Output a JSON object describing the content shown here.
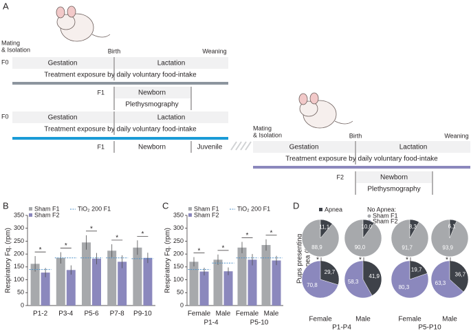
{
  "panel_a": {
    "label": "A",
    "row1": {
      "mating": [
        "Mating",
        "& Isolation"
      ],
      "birth": "Birth",
      "weaning": "Weaning",
      "generation": "F0",
      "gestation": "Gestation",
      "lactation": "Lactation",
      "treatment": "Treatment exposure by daily voluntary food-intake",
      "offspring": "F1",
      "newborn": "Newborn",
      "plethysmography": "Plethysmography"
    },
    "row2": {
      "generation": "F0",
      "gestation": "Gestation",
      "lactation": "Lactation",
      "treatment": "Treatment exposure by daily voluntary food-intake",
      "offspring": "F1",
      "newborn": "Newborn",
      "juvenile": "Juvenile"
    },
    "row3": {
      "mating": [
        "Mating",
        "& Isolation"
      ],
      "birth": "Birth",
      "weaning": "Weaning",
      "gestation": "Gestation",
      "lactation": "Lactation",
      "treatment": "Treatment exposure by daily voluntary food-intake",
      "offspring": "F2",
      "newborn": "Newborn",
      "plethysmography": "Plethysmography"
    }
  },
  "chart_data": [
    {
      "type": "bar",
      "panel_label": "B",
      "y_label": "Respiratory Fq. (rpm)",
      "categories": [
        "P1-2",
        "P3-4",
        "P5-6",
        "P7-8",
        "P9-10"
      ],
      "ylim": [
        0,
        350
      ],
      "yticks": [
        0,
        50,
        100,
        150,
        200,
        250,
        300,
        350
      ],
      "series": [
        {
          "name": "Sham F1",
          "color": "#a7a9ac",
          "values": [
            162,
            185,
            245,
            213,
            225
          ],
          "errors": [
            30,
            22,
            28,
            25,
            28
          ]
        },
        {
          "name": "Sham F2",
          "color": "#8b88bd",
          "values": [
            128,
            138,
            182,
            170,
            185
          ],
          "errors": [
            18,
            18,
            22,
            25,
            20
          ]
        }
      ],
      "reference": {
        "name": "TiO₂ 200 F1",
        "color": "#4a8fc7",
        "values": [
          140,
          185,
          185,
          185,
          182
        ]
      },
      "significance": [
        "*",
        "*",
        "*",
        "*",
        "*"
      ]
    },
    {
      "type": "bar",
      "panel_label": "C",
      "y_label": "Respiratory Fq. (rpm)",
      "categories": [
        "Female",
        "Male",
        "Female",
        "Male"
      ],
      "group_labels": [
        "P1-4",
        "P5-10"
      ],
      "ylim": [
        0,
        350
      ],
      "yticks": [
        0,
        50,
        100,
        150,
        200,
        250,
        300,
        350
      ],
      "series": [
        {
          "name": "Sham F1",
          "color": "#a7a9ac",
          "values": [
            170,
            178,
            225,
            235
          ],
          "errors": [
            18,
            20,
            22,
            22
          ]
        },
        {
          "name": "Sham F2",
          "color": "#8b88bd",
          "values": [
            132,
            133,
            178,
            175
          ],
          "errors": [
            15,
            15,
            22,
            18
          ]
        }
      ],
      "reference": {
        "name": "TiO₂ 200 F1",
        "color": "#4a8fc7",
        "values": [
          140,
          165,
          185,
          185
        ]
      },
      "significance": [
        "*",
        "*",
        "*",
        "*"
      ]
    },
    {
      "type": "pie",
      "panel_label": "D",
      "y_label": [
        "Pups presenting",
        "Apnea (%)"
      ],
      "categories": [
        "Female",
        "Male",
        "Female",
        "Male"
      ],
      "group_labels": [
        "P1-P4",
        "P5-P10"
      ],
      "apnea_name": "Apnea",
      "apnea_color": "#3e4249",
      "no_apnea_name": "No Apnea:",
      "series": [
        {
          "name": "Sham F1",
          "color": "#a7a9ac",
          "apnea": [
            11.1,
            10.0,
            8.3,
            6.1
          ],
          "apnea_labels": [
            "11,1",
            "10,0",
            "8,3",
            "6,1"
          ],
          "no_apnea": [
            88.9,
            90.0,
            91.7,
            93.9
          ],
          "no_apnea_labels": [
            "88,9",
            "90,0",
            "91,7",
            "93,9"
          ]
        },
        {
          "name": "Sham F2",
          "color": "#8b88bd",
          "apnea": [
            29.7,
            41.9,
            19.7,
            36.7
          ],
          "apnea_labels": [
            "29,7",
            "41,9",
            "19,7",
            "36,7"
          ],
          "no_apnea": [
            70.8,
            58.3,
            80.3,
            63.3
          ],
          "no_apnea_labels": [
            "70,8",
            "58,3",
            "80,3",
            "63,3"
          ]
        }
      ],
      "significance": [
        "*",
        "*",
        "*",
        "*"
      ]
    }
  ]
}
